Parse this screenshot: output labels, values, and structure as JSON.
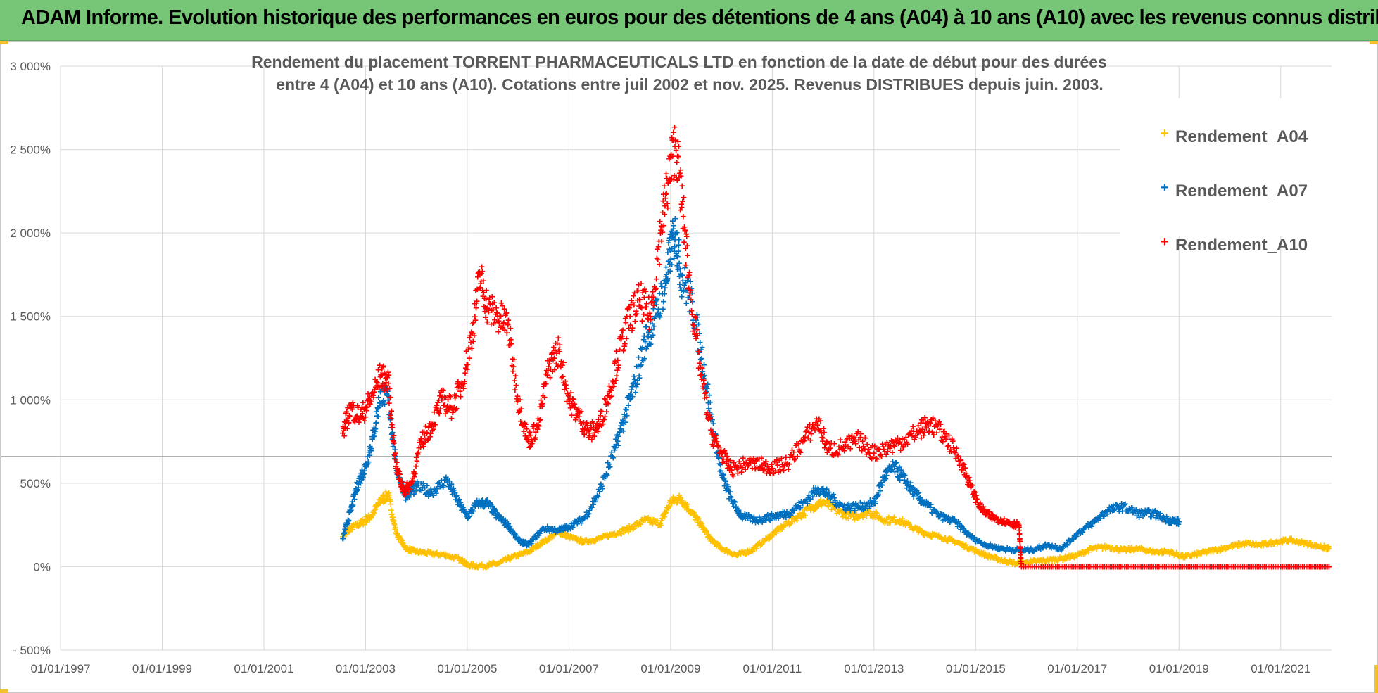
{
  "header": {
    "title": "ADAM Informe. Evolution historique des performances en euros pour des détentions de 4 ans (A04) à 10 ans (A10) avec les revenus connus distribués"
  },
  "chart_data": {
    "type": "scatter",
    "title_lines": [
      "Rendement du placement TORRENT PHARMACEUTICALS LTD en fonction de la date de début pour des durées",
      "entre 4 (A04) et 10 ans (A10).  Cotations entre juil 2002 et nov. 2025. Revenus DISTRIBUES depuis juin. 2003."
    ],
    "xlabel": "",
    "ylabel": "",
    "x_range": [
      1997.0,
      2022.0
    ],
    "ylim": [
      -500,
      3000
    ],
    "y_ticks": [
      -500,
      0,
      500,
      1000,
      1500,
      2000,
      2500,
      3000
    ],
    "y_tick_labels": [
      "- 500%",
      "0%",
      "500%",
      "1 000%",
      "1 500%",
      "2 000%",
      "2 500%",
      "3 000%"
    ],
    "x_ticks": [
      1997,
      1999,
      2001,
      2003,
      2005,
      2007,
      2009,
      2011,
      2013,
      2015,
      2017,
      2019,
      2021
    ],
    "x_tick_labels": [
      "01/01/1997",
      "01/01/1999",
      "01/01/2001",
      "01/01/2003",
      "01/01/2005",
      "01/01/2007",
      "01/01/2009",
      "01/01/2011",
      "01/01/2013",
      "01/01/2015",
      "01/01/2017",
      "01/01/2019",
      "01/01/2021"
    ],
    "reference_line_y": 660,
    "grid": true,
    "legend_position": "top-right",
    "series": [
      {
        "name": "Rendement_A04",
        "color": "#ffc000",
        "points": [
          [
            2002.55,
            180
          ],
          [
            2002.7,
            230
          ],
          [
            2002.9,
            260
          ],
          [
            2003.1,
            300
          ],
          [
            2003.3,
            400
          ],
          [
            2003.45,
            430
          ],
          [
            2003.6,
            200
          ],
          [
            2003.8,
            110
          ],
          [
            2004.0,
            90
          ],
          [
            2004.3,
            80
          ],
          [
            2004.6,
            70
          ],
          [
            2004.9,
            40
          ],
          [
            2005.0,
            10
          ],
          [
            2005.3,
            5
          ],
          [
            2005.6,
            20
          ],
          [
            2005.9,
            60
          ],
          [
            2006.2,
            90
          ],
          [
            2006.5,
            150
          ],
          [
            2006.8,
            210
          ],
          [
            2007.0,
            180
          ],
          [
            2007.3,
            150
          ],
          [
            2007.6,
            170
          ],
          [
            2007.9,
            200
          ],
          [
            2008.2,
            230
          ],
          [
            2008.5,
            280
          ],
          [
            2008.8,
            260
          ],
          [
            2009.0,
            390
          ],
          [
            2009.2,
            410
          ],
          [
            2009.4,
            330
          ],
          [
            2009.6,
            250
          ],
          [
            2009.8,
            160
          ],
          [
            2010.0,
            110
          ],
          [
            2010.3,
            70
          ],
          [
            2010.6,
            100
          ],
          [
            2010.9,
            170
          ],
          [
            2011.2,
            240
          ],
          [
            2011.5,
            300
          ],
          [
            2011.8,
            360
          ],
          [
            2012.0,
            390
          ],
          [
            2012.3,
            330
          ],
          [
            2012.6,
            300
          ],
          [
            2012.9,
            330
          ],
          [
            2013.2,
            280
          ],
          [
            2013.5,
            280
          ],
          [
            2013.8,
            230
          ],
          [
            2014.0,
            200
          ],
          [
            2014.3,
            180
          ],
          [
            2014.6,
            150
          ],
          [
            2014.9,
            110
          ],
          [
            2015.2,
            70
          ],
          [
            2015.5,
            40
          ],
          [
            2015.8,
            20
          ],
          [
            2016.1,
            30
          ],
          [
            2016.4,
            40
          ],
          [
            2016.7,
            50
          ],
          [
            2017.0,
            70
          ],
          [
            2017.3,
            110
          ],
          [
            2017.6,
            120
          ],
          [
            2017.9,
            100
          ],
          [
            2018.2,
            110
          ],
          [
            2018.5,
            90
          ],
          [
            2018.8,
            90
          ],
          [
            2019.1,
            60
          ],
          [
            2019.4,
            80
          ],
          [
            2019.7,
            100
          ],
          [
            2020.0,
            120
          ],
          [
            2020.3,
            140
          ],
          [
            2020.6,
            130
          ],
          [
            2020.9,
            150
          ],
          [
            2021.2,
            160
          ],
          [
            2021.5,
            140
          ],
          [
            2021.8,
            120
          ],
          [
            2021.95,
            110
          ]
        ]
      },
      {
        "name": "Rendement_A07",
        "color": "#0070c0",
        "points": [
          [
            2002.55,
            170
          ],
          [
            2002.7,
            330
          ],
          [
            2002.85,
            500
          ],
          [
            2003.0,
            600
          ],
          [
            2003.15,
            780
          ],
          [
            2003.3,
            1050
          ],
          [
            2003.45,
            1000
          ],
          [
            2003.6,
            600
          ],
          [
            2003.8,
            420
          ],
          [
            2004.0,
            480
          ],
          [
            2004.3,
            450
          ],
          [
            2004.6,
            520
          ],
          [
            2004.8,
            400
          ],
          [
            2005.0,
            300
          ],
          [
            2005.2,
            380
          ],
          [
            2005.4,
            380
          ],
          [
            2005.6,
            300
          ],
          [
            2005.8,
            250
          ],
          [
            2006.0,
            160
          ],
          [
            2006.2,
            130
          ],
          [
            2006.5,
            230
          ],
          [
            2006.8,
            220
          ],
          [
            2007.0,
            240
          ],
          [
            2007.3,
            290
          ],
          [
            2007.6,
            450
          ],
          [
            2007.9,
            700
          ],
          [
            2008.1,
            900
          ],
          [
            2008.3,
            1100
          ],
          [
            2008.5,
            1350
          ],
          [
            2008.7,
            1500
          ],
          [
            2008.9,
            1700
          ],
          [
            2009.0,
            1900
          ],
          [
            2009.1,
            2000
          ],
          [
            2009.2,
            1750
          ],
          [
            2009.4,
            1600
          ],
          [
            2009.6,
            1300
          ],
          [
            2009.8,
            900
          ],
          [
            2010.0,
            550
          ],
          [
            2010.2,
            400
          ],
          [
            2010.4,
            300
          ],
          [
            2010.7,
            280
          ],
          [
            2011.0,
            300
          ],
          [
            2011.3,
            320
          ],
          [
            2011.6,
            380
          ],
          [
            2011.9,
            470
          ],
          [
            2012.1,
            430
          ],
          [
            2012.4,
            360
          ],
          [
            2012.7,
            360
          ],
          [
            2013.0,
            380
          ],
          [
            2013.2,
            540
          ],
          [
            2013.4,
            600
          ],
          [
            2013.6,
            520
          ],
          [
            2013.8,
            440
          ],
          [
            2014.0,
            380
          ],
          [
            2014.3,
            300
          ],
          [
            2014.6,
            270
          ],
          [
            2014.9,
            180
          ],
          [
            2015.2,
            130
          ],
          [
            2015.5,
            110
          ],
          [
            2015.8,
            100
          ],
          [
            2016.1,
            100
          ],
          [
            2016.4,
            130
          ],
          [
            2016.7,
            110
          ],
          [
            2017.0,
            200
          ],
          [
            2017.3,
            260
          ],
          [
            2017.6,
            340
          ],
          [
            2017.9,
            360
          ],
          [
            2018.2,
            320
          ],
          [
            2018.5,
            320
          ],
          [
            2018.8,
            280
          ],
          [
            2019.0,
            270
          ]
        ]
      },
      {
        "name": "Rendement_A10",
        "color": "#ff0000",
        "points": [
          [
            2002.55,
            800
          ],
          [
            2002.7,
            950
          ],
          [
            2002.9,
            900
          ],
          [
            2003.1,
            1000
          ],
          [
            2003.3,
            1150
          ],
          [
            2003.45,
            1100
          ],
          [
            2003.6,
            600
          ],
          [
            2003.75,
            450
          ],
          [
            2003.9,
            500
          ],
          [
            2004.1,
            750
          ],
          [
            2004.3,
            850
          ],
          [
            2004.5,
            1000
          ],
          [
            2004.7,
            950
          ],
          [
            2004.9,
            1100
          ],
          [
            2005.1,
            1400
          ],
          [
            2005.25,
            1750
          ],
          [
            2005.4,
            1550
          ],
          [
            2005.6,
            1500
          ],
          [
            2005.8,
            1450
          ],
          [
            2006.0,
            1000
          ],
          [
            2006.2,
            750
          ],
          [
            2006.4,
            850
          ],
          [
            2006.6,
            1200
          ],
          [
            2006.8,
            1300
          ],
          [
            2007.0,
            1000
          ],
          [
            2007.2,
            900
          ],
          [
            2007.4,
            800
          ],
          [
            2007.6,
            850
          ],
          [
            2007.8,
            1050
          ],
          [
            2008.0,
            1300
          ],
          [
            2008.2,
            1500
          ],
          [
            2008.4,
            1600
          ],
          [
            2008.6,
            1500
          ],
          [
            2008.8,
            2000
          ],
          [
            2008.95,
            2300
          ],
          [
            2009.1,
            2550
          ],
          [
            2009.25,
            2100
          ],
          [
            2009.4,
            1600
          ],
          [
            2009.6,
            1150
          ],
          [
            2009.8,
            800
          ],
          [
            2010.0,
            680
          ],
          [
            2010.2,
            580
          ],
          [
            2010.5,
            620
          ],
          [
            2010.8,
            610
          ],
          [
            2011.0,
            590
          ],
          [
            2011.3,
            620
          ],
          [
            2011.6,
            750
          ],
          [
            2011.9,
            870
          ],
          [
            2012.1,
            700
          ],
          [
            2012.4,
            720
          ],
          [
            2012.7,
            760
          ],
          [
            2013.0,
            680
          ],
          [
            2013.3,
            720
          ],
          [
            2013.6,
            760
          ],
          [
            2013.9,
            820
          ],
          [
            2014.1,
            860
          ],
          [
            2014.4,
            780
          ],
          [
            2014.7,
            640
          ],
          [
            2014.9,
            480
          ],
          [
            2015.1,
            350
          ],
          [
            2015.3,
            300
          ],
          [
            2015.5,
            280
          ],
          [
            2015.7,
            260
          ],
          [
            2015.85,
            250
          ],
          [
            2015.9,
            0
          ],
          [
            2016.5,
            0
          ],
          [
            2017.0,
            0
          ],
          [
            2017.5,
            0
          ],
          [
            2018.0,
            0
          ],
          [
            2018.5,
            0
          ],
          [
            2019.0,
            0
          ],
          [
            2019.5,
            0
          ],
          [
            2020.0,
            0
          ],
          [
            2020.5,
            0
          ],
          [
            2021.0,
            0
          ],
          [
            2021.5,
            0
          ],
          [
            2021.95,
            0
          ]
        ]
      }
    ]
  }
}
